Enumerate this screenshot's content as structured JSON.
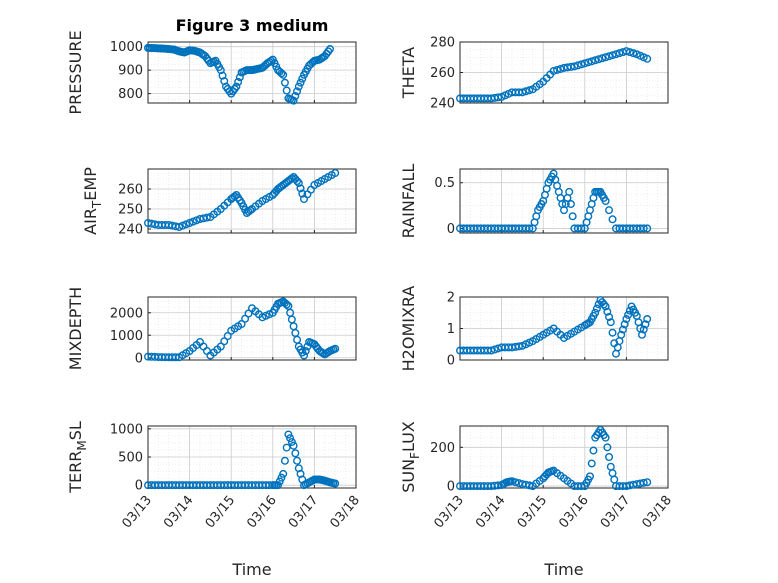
{
  "figure_title": "Figure 3 medium",
  "colors": {
    "marker": "#0072BD",
    "axis": "#262626",
    "grid": "#cccccc"
  },
  "chart_data": [
    {
      "type": "scatter",
      "ylabel": "PRESSURE",
      "xlim": [
        "03/13",
        "03/18"
      ],
      "ylim": [
        760,
        1020
      ],
      "yticks": [
        "800",
        "900",
        "1000"
      ],
      "grid": true,
      "title": "Figure 3 medium",
      "x": [
        "03/13 00:00",
        "03/13 03:00",
        "03/13 06:00",
        "03/13 09:00",
        "03/13 12:00",
        "03/13 15:00",
        "03/13 18:00",
        "03/13 21:00",
        "03/14 00:00",
        "03/14 03:00",
        "03/14 06:00",
        "03/14 09:00",
        "03/14 12:00",
        "03/14 15:00",
        "03/14 18:00",
        "03/14 21:00",
        "03/15 00:00",
        "03/15 03:00",
        "03/15 06:00",
        "03/15 09:00",
        "03/15 12:00",
        "03/15 15:00",
        "03/15 18:00",
        "03/15 21:00",
        "03/16 00:00",
        "03/16 03:00",
        "03/16 06:00",
        "03/16 09:00",
        "03/16 12:00",
        "03/16 15:00",
        "03/16 18:00",
        "03/16 21:00",
        "03/17 00:00",
        "03/17 03:00",
        "03/17 06:00",
        "03/17 09:00"
      ],
      "y": [
        995,
        994,
        993,
        992,
        990,
        988,
        980,
        975,
        985,
        982,
        975,
        960,
        930,
        940,
        900,
        830,
        800,
        830,
        890,
        900,
        900,
        905,
        910,
        930,
        945,
        900,
        880,
        780,
        770,
        830,
        880,
        920,
        940,
        945,
        960,
        990
      ]
    },
    {
      "type": "scatter",
      "ylabel": "THETA",
      "xlim": [
        "03/13",
        "03/18"
      ],
      "ylim": [
        240,
        280
      ],
      "yticks": [
        "240",
        "260",
        "280"
      ],
      "grid": true,
      "x": [
        "03/13 00:00",
        "03/13 06:00",
        "03/13 12:00",
        "03/13 18:00",
        "03/14 00:00",
        "03/14 06:00",
        "03/14 12:00",
        "03/14 18:00",
        "03/15 00:00",
        "03/15 06:00",
        "03/15 12:00",
        "03/15 18:00",
        "03/16 00:00",
        "03/16 06:00",
        "03/16 12:00",
        "03/16 18:00",
        "03/17 00:00",
        "03/17 06:00",
        "03/17 12:00"
      ],
      "y": [
        243,
        243,
        243,
        243,
        244,
        247,
        247,
        249,
        254,
        261,
        263,
        264,
        266,
        268,
        270,
        272,
        274,
        272,
        269
      ]
    },
    {
      "type": "scatter",
      "ylabel": "AIR_TEMP",
      "xlim": [
        "03/13",
        "03/18"
      ],
      "ylim": [
        238,
        270
      ],
      "yticks": [
        "240",
        "250",
        "260"
      ],
      "grid": true,
      "x": [
        "03/13 00:00",
        "03/13 06:00",
        "03/13 12:00",
        "03/13 18:00",
        "03/14 00:00",
        "03/14 06:00",
        "03/14 12:00",
        "03/14 18:00",
        "03/15 00:00",
        "03/15 03:00",
        "03/15 06:00",
        "03/15 09:00",
        "03/15 12:00",
        "03/15 18:00",
        "03/16 00:00",
        "03/16 03:00",
        "03/16 06:00",
        "03/16 09:00",
        "03/16 12:00",
        "03/16 15:00",
        "03/16 18:00",
        "03/17 00:00",
        "03/17 06:00",
        "03/17 12:00"
      ],
      "y": [
        243,
        242,
        242,
        241,
        243,
        245,
        246,
        250,
        255,
        257,
        253,
        248,
        250,
        254,
        257,
        260,
        262,
        264,
        266,
        263,
        255,
        262,
        265,
        268
      ]
    },
    {
      "type": "scatter",
      "ylabel": "RAINFALL",
      "xlim": [
        "03/13",
        "03/18"
      ],
      "ylim": [
        -0.05,
        0.65
      ],
      "yticks": [
        "0",
        "0.5"
      ],
      "grid": true,
      "x": [
        "03/13 00:00",
        "03/13 06:00",
        "03/13 12:00",
        "03/13 18:00",
        "03/14 00:00",
        "03/14 06:00",
        "03/14 12:00",
        "03/14 18:00",
        "03/14 21:00",
        "03/15 00:00",
        "03/15 03:00",
        "03/15 06:00",
        "03/15 09:00",
        "03/15 12:00",
        "03/15 15:00",
        "03/15 18:00",
        "03/16 00:00",
        "03/16 03:00",
        "03/16 06:00",
        "03/16 09:00",
        "03/16 12:00",
        "03/16 18:00",
        "03/17 00:00",
        "03/17 06:00",
        "03/17 12:00"
      ],
      "y": [
        0,
        0,
        0,
        0,
        0,
        0,
        0,
        0,
        0.2,
        0.3,
        0.5,
        0.6,
        0.4,
        0.2,
        0.4,
        0,
        0,
        0.2,
        0.4,
        0.4,
        0.3,
        0,
        0,
        0,
        0
      ]
    },
    {
      "type": "scatter",
      "ylabel": "MIXDEPTH",
      "xlim": [
        "03/13",
        "03/18"
      ],
      "ylim": [
        -100,
        2700
      ],
      "yticks": [
        "0",
        "1000",
        "2000"
      ],
      "grid": true,
      "x": [
        "03/13 00:00",
        "03/13 06:00",
        "03/13 12:00",
        "03/13 18:00",
        "03/14 00:00",
        "03/14 06:00",
        "03/14 12:00",
        "03/14 18:00",
        "03/15 00:00",
        "03/15 06:00",
        "03/15 12:00",
        "03/15 18:00",
        "03/16 00:00",
        "03/16 03:00",
        "03/16 06:00",
        "03/16 09:00",
        "03/16 12:00",
        "03/16 15:00",
        "03/16 18:00",
        "03/16 21:00",
        "03/17 00:00",
        "03/17 03:00",
        "03/17 06:00",
        "03/17 09:00",
        "03/17 12:00"
      ],
      "y": [
        50,
        30,
        20,
        20,
        300,
        700,
        100,
        500,
        1200,
        1500,
        2200,
        1800,
        2000,
        2400,
        2500,
        2300,
        1400,
        500,
        100,
        700,
        600,
        300,
        150,
        300,
        400
      ]
    },
    {
      "type": "scatter",
      "ylabel": "H2OMIXRA",
      "xlim": [
        "03/13",
        "03/18"
      ],
      "ylim": [
        0,
        2
      ],
      "yticks": [
        "0",
        "1",
        "2"
      ],
      "grid": true,
      "x": [
        "03/13 00:00",
        "03/13 06:00",
        "03/13 12:00",
        "03/13 18:00",
        "03/14 00:00",
        "03/14 06:00",
        "03/14 12:00",
        "03/14 18:00",
        "03/15 00:00",
        "03/15 06:00",
        "03/15 12:00",
        "03/15 18:00",
        "03/16 00:00",
        "03/16 03:00",
        "03/16 06:00",
        "03/16 09:00",
        "03/16 12:00",
        "03/16 15:00",
        "03/16 18:00",
        "03/16 21:00",
        "03/17 00:00",
        "03/17 03:00",
        "03/17 06:00",
        "03/17 09:00",
        "03/17 12:00"
      ],
      "y": [
        0.3,
        0.3,
        0.3,
        0.3,
        0.4,
        0.4,
        0.45,
        0.6,
        0.8,
        1.0,
        0.7,
        0.9,
        1.1,
        1.2,
        1.5,
        1.9,
        1.7,
        1.2,
        0.2,
        0.8,
        1.3,
        1.7,
        1.4,
        0.8,
        1.3
      ]
    },
    {
      "type": "scatter",
      "ylabel": "TERR_MSL",
      "xlim": [
        "03/13",
        "03/18"
      ],
      "ylim": [
        -50,
        1050
      ],
      "yticks": [
        "0",
        "500",
        "1000"
      ],
      "xticks": [
        "03/13",
        "03/14",
        "03/15",
        "03/16",
        "03/17",
        "03/18"
      ],
      "xlabel": "Time",
      "grid": true,
      "x": [
        "03/13 00:00",
        "03/13 06:00",
        "03/13 12:00",
        "03/13 18:00",
        "03/14 00:00",
        "03/14 06:00",
        "03/14 12:00",
        "03/14 18:00",
        "03/15 00:00",
        "03/15 06:00",
        "03/15 12:00",
        "03/15 18:00",
        "03/16 00:00",
        "03/16 03:00",
        "03/16 06:00",
        "03/16 09:00",
        "03/16 12:00",
        "03/16 15:00",
        "03/16 18:00",
        "03/16 21:00",
        "03/17 00:00",
        "03/17 03:00",
        "03/17 06:00",
        "03/17 09:00",
        "03/17 12:00"
      ],
      "y": [
        0,
        0,
        0,
        0,
        0,
        0,
        0,
        0,
        0,
        0,
        0,
        0,
        0,
        0,
        200,
        900,
        700,
        300,
        0,
        50,
        100,
        100,
        80,
        50,
        30
      ]
    },
    {
      "type": "scatter",
      "ylabel": "SUN_FLUX",
      "xlim": [
        "03/13",
        "03/18"
      ],
      "ylim": [
        -10,
        310
      ],
      "yticks": [
        "0",
        "200"
      ],
      "xticks": [
        "03/13",
        "03/14",
        "03/15",
        "03/16",
        "03/17",
        "03/18"
      ],
      "xlabel": "Time",
      "grid": true,
      "x": [
        "03/13 00:00",
        "03/13 06:00",
        "03/13 12:00",
        "03/13 18:00",
        "03/14 00:00",
        "03/14 03:00",
        "03/14 06:00",
        "03/14 12:00",
        "03/14 18:00",
        "03/15 00:00",
        "03/15 03:00",
        "03/15 06:00",
        "03/15 12:00",
        "03/15 18:00",
        "03/16 00:00",
        "03/16 03:00",
        "03/16 06:00",
        "03/16 09:00",
        "03/16 12:00",
        "03/16 15:00",
        "03/16 18:00",
        "03/17 00:00",
        "03/17 06:00",
        "03/17 12:00"
      ],
      "y": [
        0,
        0,
        0,
        0,
        5,
        20,
        25,
        10,
        0,
        40,
        70,
        80,
        40,
        0,
        0,
        50,
        250,
        290,
        250,
        100,
        0,
        0,
        10,
        20
      ]
    }
  ]
}
